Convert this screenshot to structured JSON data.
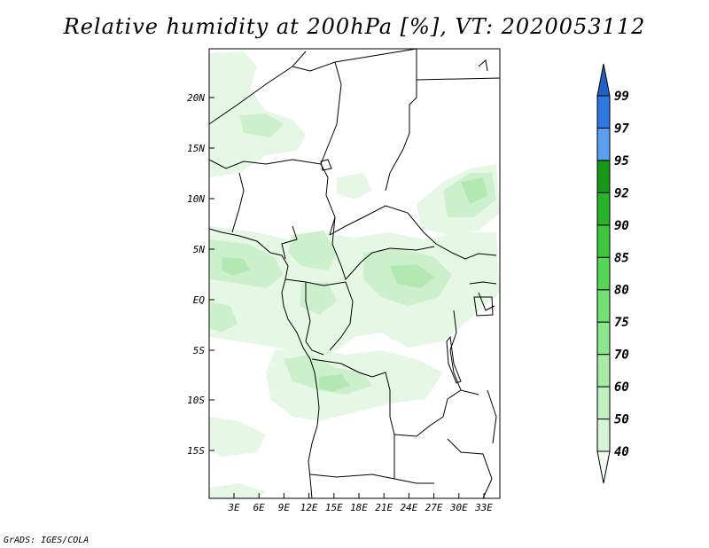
{
  "title": "Relative humidity at 200hPa [%], VT: 2020053112",
  "credit": "GrADS: IGES/COLA",
  "map": {
    "lat_labels": [
      "20N",
      "15N",
      "10N",
      "5N",
      "EQ",
      "5S",
      "10S",
      "15S"
    ],
    "lon_labels": [
      "3E",
      "6E",
      "9E",
      "12E",
      "15E",
      "18E",
      "21E",
      "24E",
      "27E",
      "30E",
      "33E"
    ]
  },
  "colorbar": {
    "levels": [
      "40",
      "50",
      "60",
      "70",
      "75",
      "80",
      "85",
      "90",
      "92",
      "95",
      "97",
      "99"
    ],
    "colors": [
      "#f0fcf0",
      "#d6f5d6",
      "#bff0bf",
      "#a6eba6",
      "#8ce68c",
      "#73e073",
      "#55d655",
      "#3ec83e",
      "#28b428",
      "#169816",
      "#5a9ff0",
      "#2f78e0",
      "#1e5fc8"
    ]
  }
}
